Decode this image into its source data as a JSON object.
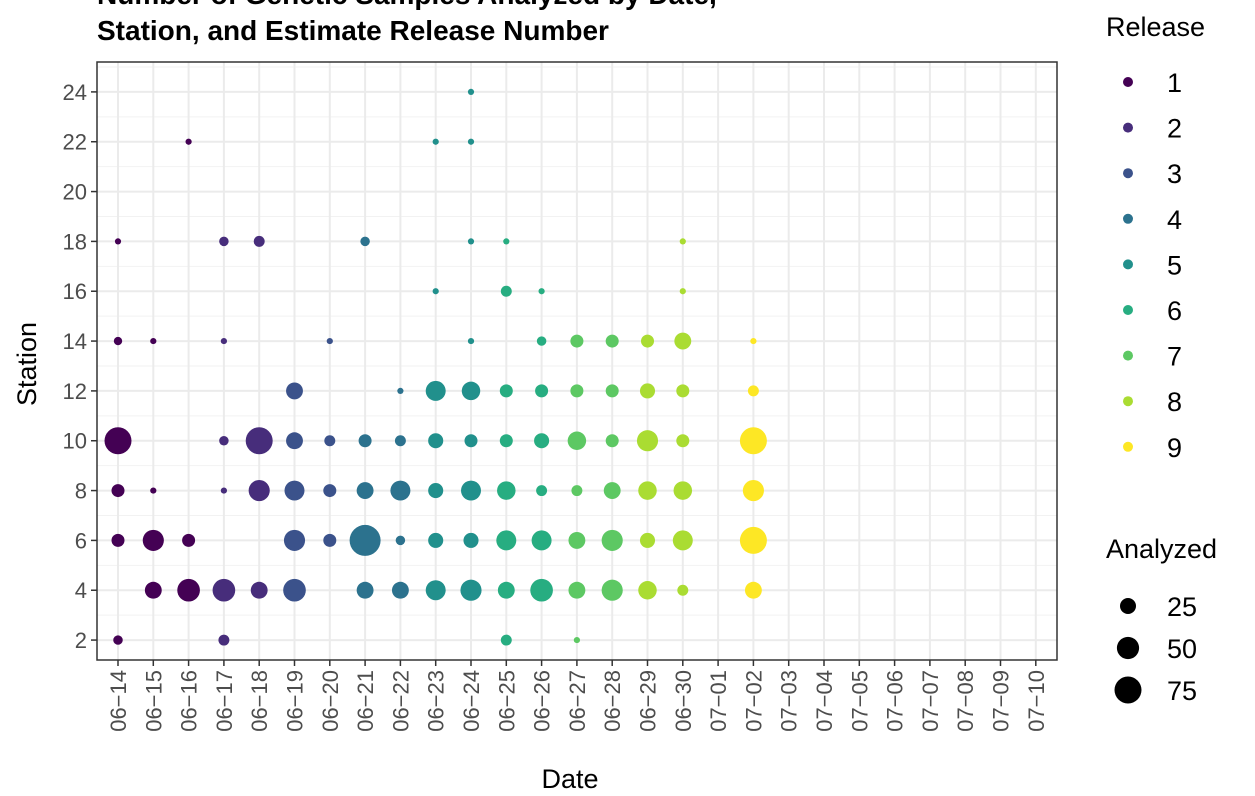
{
  "chart_data": {
    "type": "scatter",
    "title_lines": [
      "Number of Genetic Samples Analyzed by Date,",
      "Station, and Estimate Release Number"
    ],
    "xlabel": "Date",
    "ylabel": "Station",
    "x_categories": [
      "06-14",
      "06-15",
      "06-16",
      "06-17",
      "06-18",
      "06-19",
      "06-20",
      "06-21",
      "06-22",
      "06-23",
      "06-24",
      "06-25",
      "06-26",
      "06-27",
      "06-28",
      "06-29",
      "06-30",
      "07-01",
      "07-02",
      "07-03",
      "07-04",
      "07-05",
      "07-06",
      "07-07",
      "07-08",
      "07-09",
      "07-10"
    ],
    "x_tick_labels": [
      "06−14",
      "06−15",
      "06−16",
      "06−17",
      "06−18",
      "06−19",
      "06−20",
      "06−21",
      "06−22",
      "06−23",
      "06−24",
      "06−25",
      "06−26",
      "06−27",
      "06−28",
      "06−29",
      "06−30",
      "07−01",
      "07−02",
      "07−03",
      "07−04",
      "07−05",
      "07−06",
      "07−07",
      "07−08",
      "07−09",
      "07−10"
    ],
    "y_ticks": [
      2,
      4,
      6,
      8,
      10,
      12,
      14,
      16,
      18,
      20,
      22,
      24
    ],
    "ylim": [
      1.2,
      25.2
    ],
    "grid": true,
    "legend_position": "right",
    "color_legend": {
      "title": "Release",
      "entries": [
        {
          "label": "1",
          "color": "#440154"
        },
        {
          "label": "2",
          "color": "#472D7B"
        },
        {
          "label": "3",
          "color": "#3B528B"
        },
        {
          "label": "4",
          "color": "#2C728E"
        },
        {
          "label": "5",
          "color": "#21908C"
        },
        {
          "label": "6",
          "color": "#27AD81"
        },
        {
          "label": "7",
          "color": "#5DC863"
        },
        {
          "label": "8",
          "color": "#AADC32"
        },
        {
          "label": "9",
          "color": "#FDE725"
        }
      ]
    },
    "size_legend": {
      "title": "Analyzed",
      "entries": [
        {
          "label": "25",
          "value": 25
        },
        {
          "label": "50",
          "value": 50
        },
        {
          "label": "75",
          "value": 75
        }
      ]
    },
    "points": [
      {
        "date": "06-14",
        "station": 18,
        "release": 1,
        "n": 3
      },
      {
        "date": "06-14",
        "station": 14,
        "release": 1,
        "n": 6
      },
      {
        "date": "06-14",
        "station": 10,
        "release": 1,
        "n": 75
      },
      {
        "date": "06-14",
        "station": 8,
        "release": 1,
        "n": 16
      },
      {
        "date": "06-14",
        "station": 6,
        "release": 1,
        "n": 16
      },
      {
        "date": "06-14",
        "station": 2,
        "release": 1,
        "n": 8
      },
      {
        "date": "06-15",
        "station": 14,
        "release": 1,
        "n": 3
      },
      {
        "date": "06-15",
        "station": 8,
        "release": 1,
        "n": 3
      },
      {
        "date": "06-15",
        "station": 6,
        "release": 1,
        "n": 45
      },
      {
        "date": "06-15",
        "station": 4,
        "release": 1,
        "n": 28
      },
      {
        "date": "06-16",
        "station": 22,
        "release": 1,
        "n": 3
      },
      {
        "date": "06-16",
        "station": 6,
        "release": 1,
        "n": 16
      },
      {
        "date": "06-16",
        "station": 4,
        "release": 1,
        "n": 52
      },
      {
        "date": "06-17",
        "station": 18,
        "release": 2,
        "n": 8
      },
      {
        "date": "06-17",
        "station": 14,
        "release": 2,
        "n": 3
      },
      {
        "date": "06-17",
        "station": 10,
        "release": 2,
        "n": 8
      },
      {
        "date": "06-17",
        "station": 8,
        "release": 2,
        "n": 3
      },
      {
        "date": "06-17",
        "station": 4,
        "release": 2,
        "n": 52
      },
      {
        "date": "06-17",
        "station": 2,
        "release": 2,
        "n": 11
      },
      {
        "date": "06-18",
        "station": 18,
        "release": 2,
        "n": 11
      },
      {
        "date": "06-18",
        "station": 10,
        "release": 2,
        "n": 75
      },
      {
        "date": "06-18",
        "station": 8,
        "release": 2,
        "n": 45
      },
      {
        "date": "06-18",
        "station": 4,
        "release": 2,
        "n": 28
      },
      {
        "date": "06-19",
        "station": 12,
        "release": 3,
        "n": 28
      },
      {
        "date": "06-19",
        "station": 10,
        "release": 3,
        "n": 28
      },
      {
        "date": "06-19",
        "station": 8,
        "release": 3,
        "n": 40
      },
      {
        "date": "06-19",
        "station": 6,
        "release": 3,
        "n": 45
      },
      {
        "date": "06-19",
        "station": 4,
        "release": 3,
        "n": 52
      },
      {
        "date": "06-20",
        "station": 14,
        "release": 3,
        "n": 3
      },
      {
        "date": "06-20",
        "station": 10,
        "release": 3,
        "n": 11
      },
      {
        "date": "06-20",
        "station": 8,
        "release": 3,
        "n": 16
      },
      {
        "date": "06-20",
        "station": 6,
        "release": 3,
        "n": 16
      },
      {
        "date": "06-21",
        "station": 18,
        "release": 4,
        "n": 8
      },
      {
        "date": "06-21",
        "station": 10,
        "release": 4,
        "n": 16
      },
      {
        "date": "06-21",
        "station": 8,
        "release": 4,
        "n": 28
      },
      {
        "date": "06-21",
        "station": 6,
        "release": 4,
        "n": 100
      },
      {
        "date": "06-21",
        "station": 4,
        "release": 4,
        "n": 28
      },
      {
        "date": "06-22",
        "station": 12,
        "release": 4,
        "n": 3
      },
      {
        "date": "06-22",
        "station": 10,
        "release": 4,
        "n": 11
      },
      {
        "date": "06-22",
        "station": 8,
        "release": 4,
        "n": 40
      },
      {
        "date": "06-22",
        "station": 6,
        "release": 4,
        "n": 8
      },
      {
        "date": "06-22",
        "station": 4,
        "release": 4,
        "n": 28
      },
      {
        "date": "06-23",
        "station": 22,
        "release": 5,
        "n": 3
      },
      {
        "date": "06-23",
        "station": 16,
        "release": 5,
        "n": 3
      },
      {
        "date": "06-23",
        "station": 12,
        "release": 5,
        "n": 40
      },
      {
        "date": "06-23",
        "station": 10,
        "release": 5,
        "n": 22
      },
      {
        "date": "06-23",
        "station": 8,
        "release": 5,
        "n": 22
      },
      {
        "date": "06-23",
        "station": 6,
        "release": 5,
        "n": 22
      },
      {
        "date": "06-23",
        "station": 4,
        "release": 5,
        "n": 40
      },
      {
        "date": "06-24",
        "station": 24,
        "release": 5,
        "n": 3
      },
      {
        "date": "06-24",
        "station": 22,
        "release": 5,
        "n": 3
      },
      {
        "date": "06-24",
        "station": 18,
        "release": 5,
        "n": 3
      },
      {
        "date": "06-24",
        "station": 14,
        "release": 5,
        "n": 3
      },
      {
        "date": "06-24",
        "station": 12,
        "release": 5,
        "n": 34
      },
      {
        "date": "06-24",
        "station": 10,
        "release": 5,
        "n": 16
      },
      {
        "date": "06-24",
        "station": 8,
        "release": 5,
        "n": 40
      },
      {
        "date": "06-24",
        "station": 6,
        "release": 5,
        "n": 22
      },
      {
        "date": "06-24",
        "station": 4,
        "release": 5,
        "n": 45
      },
      {
        "date": "06-25",
        "station": 18,
        "release": 6,
        "n": 3
      },
      {
        "date": "06-25",
        "station": 16,
        "release": 6,
        "n": 11
      },
      {
        "date": "06-25",
        "station": 12,
        "release": 6,
        "n": 16
      },
      {
        "date": "06-25",
        "station": 10,
        "release": 6,
        "n": 16
      },
      {
        "date": "06-25",
        "station": 8,
        "release": 6,
        "n": 34
      },
      {
        "date": "06-25",
        "station": 6,
        "release": 6,
        "n": 40
      },
      {
        "date": "06-25",
        "station": 4,
        "release": 6,
        "n": 28
      },
      {
        "date": "06-25",
        "station": 2,
        "release": 6,
        "n": 11
      },
      {
        "date": "06-26",
        "station": 16,
        "release": 6,
        "n": 3
      },
      {
        "date": "06-26",
        "station": 14,
        "release": 6,
        "n": 8
      },
      {
        "date": "06-26",
        "station": 12,
        "release": 6,
        "n": 16
      },
      {
        "date": "06-26",
        "station": 10,
        "release": 6,
        "n": 22
      },
      {
        "date": "06-26",
        "station": 8,
        "release": 6,
        "n": 11
      },
      {
        "date": "06-26",
        "station": 6,
        "release": 6,
        "n": 40
      },
      {
        "date": "06-26",
        "station": 4,
        "release": 6,
        "n": 52
      },
      {
        "date": "06-27",
        "station": 14,
        "release": 7,
        "n": 16
      },
      {
        "date": "06-27",
        "station": 12,
        "release": 7,
        "n": 16
      },
      {
        "date": "06-27",
        "station": 10,
        "release": 7,
        "n": 34
      },
      {
        "date": "06-27",
        "station": 8,
        "release": 7,
        "n": 11
      },
      {
        "date": "06-27",
        "station": 6,
        "release": 7,
        "n": 28
      },
      {
        "date": "06-27",
        "station": 4,
        "release": 7,
        "n": 28
      },
      {
        "date": "06-27",
        "station": 2,
        "release": 7,
        "n": 3
      },
      {
        "date": "06-28",
        "station": 14,
        "release": 7,
        "n": 16
      },
      {
        "date": "06-28",
        "station": 12,
        "release": 7,
        "n": 16
      },
      {
        "date": "06-28",
        "station": 10,
        "release": 7,
        "n": 16
      },
      {
        "date": "06-28",
        "station": 8,
        "release": 7,
        "n": 28
      },
      {
        "date": "06-28",
        "station": 6,
        "release": 7,
        "n": 45
      },
      {
        "date": "06-28",
        "station": 4,
        "release": 7,
        "n": 45
      },
      {
        "date": "06-29",
        "station": 14,
        "release": 8,
        "n": 16
      },
      {
        "date": "06-29",
        "station": 12,
        "release": 8,
        "n": 22
      },
      {
        "date": "06-29",
        "station": 10,
        "release": 8,
        "n": 45
      },
      {
        "date": "06-29",
        "station": 8,
        "release": 8,
        "n": 34
      },
      {
        "date": "06-29",
        "station": 6,
        "release": 8,
        "n": 22
      },
      {
        "date": "06-29",
        "station": 4,
        "release": 8,
        "n": 34
      },
      {
        "date": "06-30",
        "station": 18,
        "release": 8,
        "n": 3
      },
      {
        "date": "06-30",
        "station": 16,
        "release": 8,
        "n": 3
      },
      {
        "date": "06-30",
        "station": 14,
        "release": 8,
        "n": 28
      },
      {
        "date": "06-30",
        "station": 12,
        "release": 8,
        "n": 16
      },
      {
        "date": "06-30",
        "station": 10,
        "release": 8,
        "n": 16
      },
      {
        "date": "06-30",
        "station": 8,
        "release": 8,
        "n": 34
      },
      {
        "date": "06-30",
        "station": 6,
        "release": 8,
        "n": 40
      },
      {
        "date": "06-30",
        "station": 4,
        "release": 8,
        "n": 11
      },
      {
        "date": "07-02",
        "station": 14,
        "release": 9,
        "n": 3
      },
      {
        "date": "07-02",
        "station": 12,
        "release": 9,
        "n": 11
      },
      {
        "date": "07-02",
        "station": 10,
        "release": 9,
        "n": 75
      },
      {
        "date": "07-02",
        "station": 8,
        "release": 9,
        "n": 45
      },
      {
        "date": "07-02",
        "station": 6,
        "release": 9,
        "n": 75
      },
      {
        "date": "07-02",
        "station": 4,
        "release": 9,
        "n": 28
      }
    ]
  }
}
